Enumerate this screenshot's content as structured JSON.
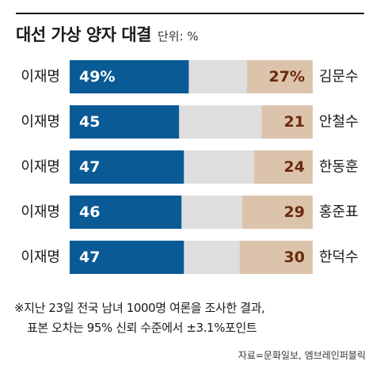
{
  "title": "대선 가상 양자 대결",
  "unit": "단위: %",
  "chart_data": {
    "type": "bar",
    "stacked": true,
    "orientation": "horizontal",
    "title": "대선 가상 양자 대결",
    "unit": "단위: %",
    "xlim": [
      0,
      100
    ],
    "rows": [
      {
        "left_name": "이재명",
        "right_name": "김문수",
        "left_value": 49,
        "right_value": 27,
        "left_label": "49%",
        "right_label": "27%"
      },
      {
        "left_name": "이재명",
        "right_name": "안철수",
        "left_value": 45,
        "right_value": 21,
        "left_label": "45",
        "right_label": "21"
      },
      {
        "left_name": "이재명",
        "right_name": "한동훈",
        "left_value": 47,
        "right_value": 24,
        "left_label": "47",
        "right_label": "24"
      },
      {
        "left_name": "이재명",
        "right_name": "홍준표",
        "left_value": 46,
        "right_value": 29,
        "left_label": "46",
        "right_label": "29"
      },
      {
        "left_name": "이재명",
        "right_name": "한덕수",
        "left_value": 47,
        "right_value": 30,
        "left_label": "47",
        "right_label": "30"
      }
    ],
    "colors": {
      "left": "#0a5a96",
      "middle": "#dedede",
      "right": "#dcc3ac",
      "left_text": "#ffffff",
      "right_text": "#6b2a0c"
    }
  },
  "notes": {
    "line1": "※지난 23일 전국 남녀 1000명 여론을 조사한 결과,",
    "line2": "표본 오차는 95% 신뢰 수준에서  ±3.1%포인트"
  },
  "source": "자료=문화일보, 엠브레인퍼블릭"
}
